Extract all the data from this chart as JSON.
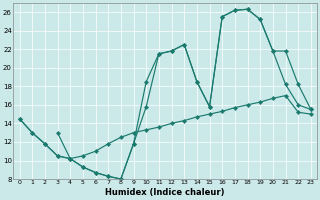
{
  "xlabel": "Humidex (Indice chaleur)",
  "xlim": [
    -0.5,
    23.5
  ],
  "ylim": [
    8,
    27
  ],
  "yticks": [
    8,
    10,
    12,
    14,
    16,
    18,
    20,
    22,
    24,
    26
  ],
  "xticks": [
    0,
    1,
    2,
    3,
    4,
    5,
    6,
    7,
    8,
    9,
    10,
    11,
    12,
    13,
    14,
    15,
    16,
    17,
    18,
    19,
    20,
    21,
    22,
    23
  ],
  "bg_color": "#cce9e9",
  "line_color": "#1a7a6e",
  "line1_x": [
    0,
    1,
    2,
    3,
    4,
    5,
    6,
    7,
    8,
    9,
    10,
    11,
    12,
    13,
    14,
    15,
    16,
    17,
    18,
    19,
    20,
    21,
    22,
    23
  ],
  "line1_y": [
    14.5,
    13.0,
    11.8,
    10.5,
    10.2,
    9.3,
    8.7,
    8.3,
    8.0,
    11.8,
    18.5,
    21.5,
    21.8,
    22.5,
    18.5,
    15.8,
    25.5,
    26.2,
    26.3,
    25.2,
    21.8,
    18.2,
    16.0,
    15.5
  ],
  "line2_x": [
    0,
    1,
    2,
    3,
    4,
    5,
    6,
    7,
    8,
    9,
    10,
    11,
    12,
    13,
    14,
    15,
    16,
    17,
    18,
    19,
    20,
    21,
    22,
    23
  ],
  "line2_y": [
    14.5,
    13.0,
    11.8,
    10.5,
    10.2,
    10.5,
    11.0,
    11.8,
    12.5,
    13.0,
    13.3,
    13.6,
    14.0,
    14.3,
    14.7,
    15.0,
    15.3,
    15.7,
    16.0,
    16.3,
    16.7,
    17.0,
    15.2,
    15.0
  ],
  "line3_x": [
    3,
    4,
    5,
    6,
    7,
    8,
    9,
    10,
    11,
    12,
    13,
    14,
    15,
    16,
    17,
    18,
    19,
    20,
    21,
    22,
    23
  ],
  "line3_y": [
    13.0,
    10.2,
    9.3,
    8.7,
    8.3,
    8.0,
    11.8,
    15.8,
    21.5,
    21.8,
    22.5,
    18.5,
    15.8,
    25.5,
    26.2,
    26.3,
    25.2,
    21.8,
    21.8,
    18.2,
    15.5
  ]
}
